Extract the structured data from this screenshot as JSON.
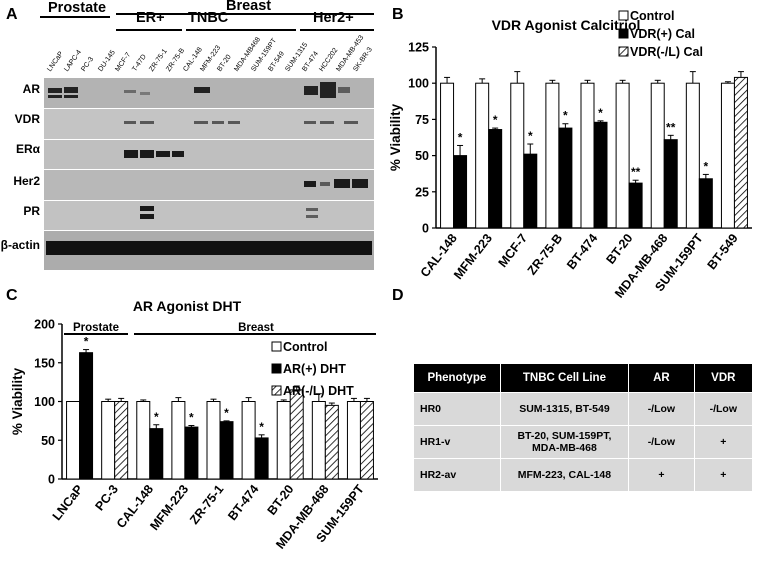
{
  "panels": {
    "A": {
      "letter": "A",
      "tissue_headers": [
        "Prostate",
        "Breast"
      ],
      "subgroups": [
        "ER+",
        "TNBC",
        "Her2+"
      ],
      "lanes": [
        "LNCaP",
        "LAPC-4",
        "PC-3",
        "DU-145",
        "MCF-7",
        "T-47D",
        "ZR-75-1",
        "ZR-75-B",
        "CAL-148",
        "MFM-223",
        "BT-20",
        "MDA-MB468",
        "SUM-159PT",
        "BT-549",
        "SUM-1315",
        "BT-474",
        "HCC202",
        "MDA-MB-453",
        "SK-BR-3"
      ],
      "rows": [
        "AR",
        "VDR",
        "ERα",
        "Her2",
        "PR",
        "β-actin"
      ]
    },
    "B": {
      "letter": "B",
      "title": "VDR Agonist  Calcitriol",
      "legend": [
        "Control",
        "VDR(+) Cal",
        "VDR(-/L) Cal"
      ]
    },
    "C": {
      "letter": "C",
      "title": "AR Agonist  DHT",
      "group_labels": [
        "Prostate",
        "Breast"
      ],
      "legend": [
        "Control",
        "AR(+) DHT",
        "AR(-/L) DHT"
      ]
    },
    "D": {
      "letter": "D",
      "headers": [
        "Phenotype",
        "TNBC Cell Line",
        "AR",
        "VDR"
      ],
      "rows": [
        [
          "HR0",
          "SUM-1315, BT-549",
          "-/Low",
          "-/Low"
        ],
        [
          "HR1-v",
          "BT-20, SUM-159PT, MDA-MB-468",
          "-/Low",
          "+"
        ],
        [
          "HR2-av",
          "MFM-223, CAL-148",
          "+",
          "+"
        ]
      ]
    }
  },
  "chart_data": [
    {
      "type": "bar",
      "title": "VDR Agonist  Calcitriol",
      "xlabel": "",
      "ylabel": "% Viability",
      "ylim": [
        0,
        125
      ],
      "yticks": [
        0,
        25,
        50,
        75,
        100,
        125
      ],
      "categories": [
        "CAL-148",
        "MFM-223",
        "MCF-7",
        "ZR-75-B",
        "BT-474",
        "BT-20",
        "MDA-MB-468",
        "SUM-159PT",
        "BT-549"
      ],
      "series": [
        {
          "name": "Control",
          "color": "#ffffff",
          "values": [
            100,
            100,
            100,
            100,
            100,
            100,
            100,
            100,
            100
          ],
          "errors": [
            4,
            3,
            8,
            2,
            2,
            2,
            2,
            8,
            1
          ]
        },
        {
          "name": "VDR(+) Cal",
          "color": "#000000",
          "values": [
            50,
            68,
            51,
            69,
            73,
            31,
            61,
            34,
            null
          ],
          "errors": [
            7,
            1,
            7,
            3,
            1,
            2,
            3,
            3,
            null
          ]
        },
        {
          "name": "VDR(-/L) Cal",
          "color": "hatch",
          "values": [
            null,
            null,
            null,
            null,
            null,
            null,
            null,
            null,
            104
          ],
          "errors": [
            null,
            null,
            null,
            null,
            null,
            null,
            null,
            null,
            4
          ]
        }
      ],
      "significance": [
        "*",
        "*",
        "*",
        "*",
        "*",
        "**",
        "**",
        "*",
        ""
      ],
      "legend_position": "top-right"
    },
    {
      "type": "bar",
      "title": "AR Agonist  DHT",
      "xlabel": "",
      "ylabel": "% Viability",
      "ylim": [
        0,
        200
      ],
      "yticks": [
        0,
        50,
        100,
        150,
        200
      ],
      "categories": [
        "LNCaP",
        "PC-3",
        "CAL-148",
        "MFM-223",
        "ZR-75-1",
        "BT-474",
        "BT-20",
        "MDA-MB-468",
        "SUM-159PT"
      ],
      "series": [
        {
          "name": "Control",
          "color": "#ffffff",
          "values": [
            100,
            100,
            100,
            100,
            100,
            100,
            100,
            100,
            100
          ],
          "errors": [
            0,
            3,
            2,
            5,
            3,
            5,
            2,
            10,
            4
          ]
        },
        {
          "name": "AR(+) DHT",
          "color": "#000000",
          "values": [
            163,
            null,
            65,
            67,
            74,
            53,
            null,
            null,
            null
          ],
          "errors": [
            4,
            null,
            5,
            2,
            1,
            4,
            null,
            null,
            null
          ]
        },
        {
          "name": "AR(-/L) DHT",
          "color": "hatch",
          "values": [
            null,
            100,
            null,
            null,
            null,
            null,
            115,
            95,
            100
          ],
          "errors": [
            null,
            4,
            null,
            null,
            null,
            null,
            5,
            3,
            4
          ]
        }
      ],
      "significance": [
        "*",
        "",
        "*",
        "*",
        "*",
        "*",
        "",
        "",
        ""
      ],
      "legend_position": "top-right"
    }
  ]
}
